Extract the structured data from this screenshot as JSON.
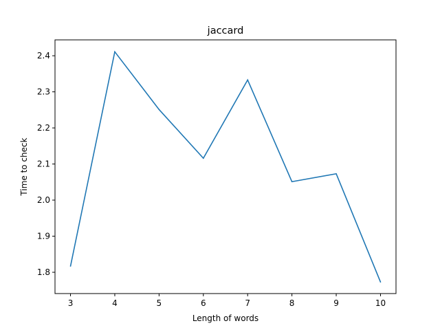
{
  "chart_data": {
    "type": "line",
    "title": "jaccard",
    "xlabel": "Length of words",
    "ylabel": "Time to check",
    "x": [
      3,
      4,
      5,
      6,
      7,
      8,
      9,
      10
    ],
    "series": [
      {
        "values": [
          1.817,
          2.411,
          2.251,
          2.116,
          2.333,
          2.051,
          2.073,
          1.773
        ],
        "color": "#1f77b4"
      }
    ],
    "xlim": [
      2.65,
      10.35
    ],
    "ylim": [
      1.741,
      2.444
    ],
    "xticks": [
      3,
      4,
      5,
      6,
      7,
      8,
      9,
      10
    ],
    "yticks": [
      1.8,
      1.9,
      2.0,
      2.1,
      2.2,
      2.3,
      2.4
    ],
    "ytick_labels": [
      "1.8",
      "1.9",
      "2.0",
      "2.1",
      "2.2",
      "2.3",
      "2.4"
    ],
    "grid": false
  }
}
